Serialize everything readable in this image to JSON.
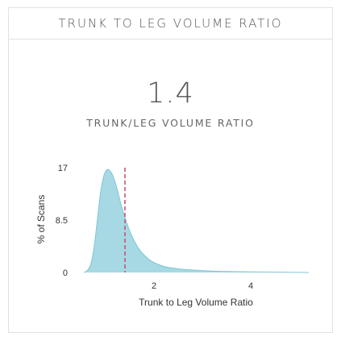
{
  "card": {
    "title": "TRUNK TO LEG VOLUME RATIO",
    "value": "1.4",
    "value_label": "TRUNK/LEG VOLUME RATIO"
  },
  "colors": {
    "fill": "#a6d9e3",
    "stroke": "#7fc6d6",
    "marker": "#c44d6c",
    "border": "#e2e2e2",
    "text": "#555555"
  },
  "chart_data": {
    "type": "area",
    "title": "",
    "xlabel": "Trunk to Leg Volume Ratio",
    "ylabel": "% of Scans",
    "xlim": [
      0.5,
      5.2
    ],
    "ylim": [
      0,
      17
    ],
    "x_ticks": [
      {
        "value": 2,
        "label": "2"
      },
      {
        "value": 4,
        "label": "4"
      }
    ],
    "y_ticks": [
      {
        "value": 0,
        "label": "0"
      },
      {
        "value": 8.5,
        "label": "8.5"
      },
      {
        "value": 17,
        "label": "17"
      }
    ],
    "marker_x": 1.4,
    "grid": false,
    "series": [
      {
        "x": [
          0.55,
          0.6,
          0.65,
          0.7,
          0.75,
          0.8,
          0.85,
          0.9,
          0.95,
          1.0,
          1.05,
          1.1,
          1.15,
          1.2,
          1.25,
          1.3,
          1.35,
          1.4,
          1.5,
          1.6,
          1.7,
          1.8,
          1.9,
          2.0,
          2.2,
          2.4,
          2.6,
          2.8,
          3.0,
          3.3,
          3.6,
          4.0,
          4.4,
          4.8,
          5.2
        ],
        "values": [
          0.0,
          0.2,
          0.6,
          1.5,
          3.5,
          6.5,
          10.0,
          13.2,
          15.3,
          16.4,
          16.7,
          16.4,
          15.7,
          14.6,
          13.2,
          11.6,
          10.2,
          8.9,
          6.7,
          5.0,
          3.7,
          2.8,
          2.1,
          1.6,
          1.0,
          0.7,
          0.5,
          0.4,
          0.3,
          0.2,
          0.15,
          0.1,
          0.06,
          0.03,
          0.0
        ]
      }
    ]
  }
}
